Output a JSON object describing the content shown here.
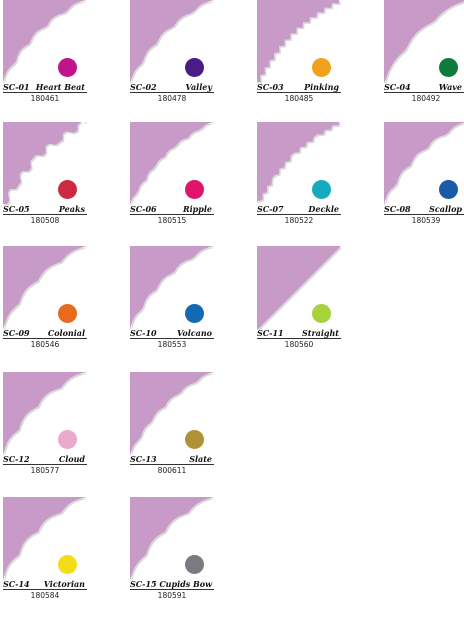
{
  "corner_color": "#c89ac8",
  "swatches": [
    {
      "code": "SC-01",
      "name": "Heart Beat",
      "number": "180461",
      "color": "#c0148a",
      "pattern": "heart-beat-edge"
    },
    {
      "code": "SC-02",
      "name": "Valley",
      "number": "180478",
      "color": "#4a1c86",
      "pattern": "valley-edge"
    },
    {
      "code": "SC-03",
      "name": "Pinking",
      "number": "180485",
      "color": "#f0a21c",
      "pattern": "pinking-edge"
    },
    {
      "code": "SC-04",
      "name": "Wave",
      "number": "180492",
      "color": "#0e7a3c",
      "pattern": "wave-edge"
    },
    {
      "code": "SC-05",
      "name": "Peaks",
      "number": "180508",
      "color": "#cc2a44",
      "pattern": "peaks-edge"
    },
    {
      "code": "SC-06",
      "name": "Ripple",
      "number": "180515",
      "color": "#e0146a",
      "pattern": "ripple-edge"
    },
    {
      "code": "SC-07",
      "name": "Deckle",
      "number": "180522",
      "color": "#16aac0",
      "pattern": "deckle-edge"
    },
    {
      "code": "SC-08",
      "name": "Scallop",
      "number": "180539",
      "color": "#1a5aa8",
      "pattern": "scallop-edge"
    },
    {
      "code": "SC-09",
      "name": "Colonial",
      "number": "180546",
      "color": "#e86a1c",
      "pattern": "colonial-edge"
    },
    {
      "code": "SC-10",
      "name": "Volcano",
      "number": "180553",
      "color": "#146ab2",
      "pattern": "volcano-edge"
    },
    {
      "code": "SC-11",
      "name": "Straight",
      "number": "180560",
      "color": "#a6d23c",
      "pattern": "straight-edge"
    },
    {
      "code": "SC-12",
      "name": "Cloud",
      "number": "180577",
      "color": "#eaaace",
      "pattern": "cloud-edge"
    },
    {
      "code": "SC-13",
      "name": "Slate",
      "number": "800611",
      "color": "#b09236",
      "pattern": "slate-edge"
    },
    {
      "code": "SC-14",
      "name": "Victorian",
      "number": "180584",
      "color": "#f2de14",
      "pattern": "victorian-edge"
    },
    {
      "code": "SC-15",
      "name": "Cupids Bow",
      "number": "180591",
      "color": "#7a7a80",
      "pattern": "cupids-bow-edge"
    }
  ]
}
